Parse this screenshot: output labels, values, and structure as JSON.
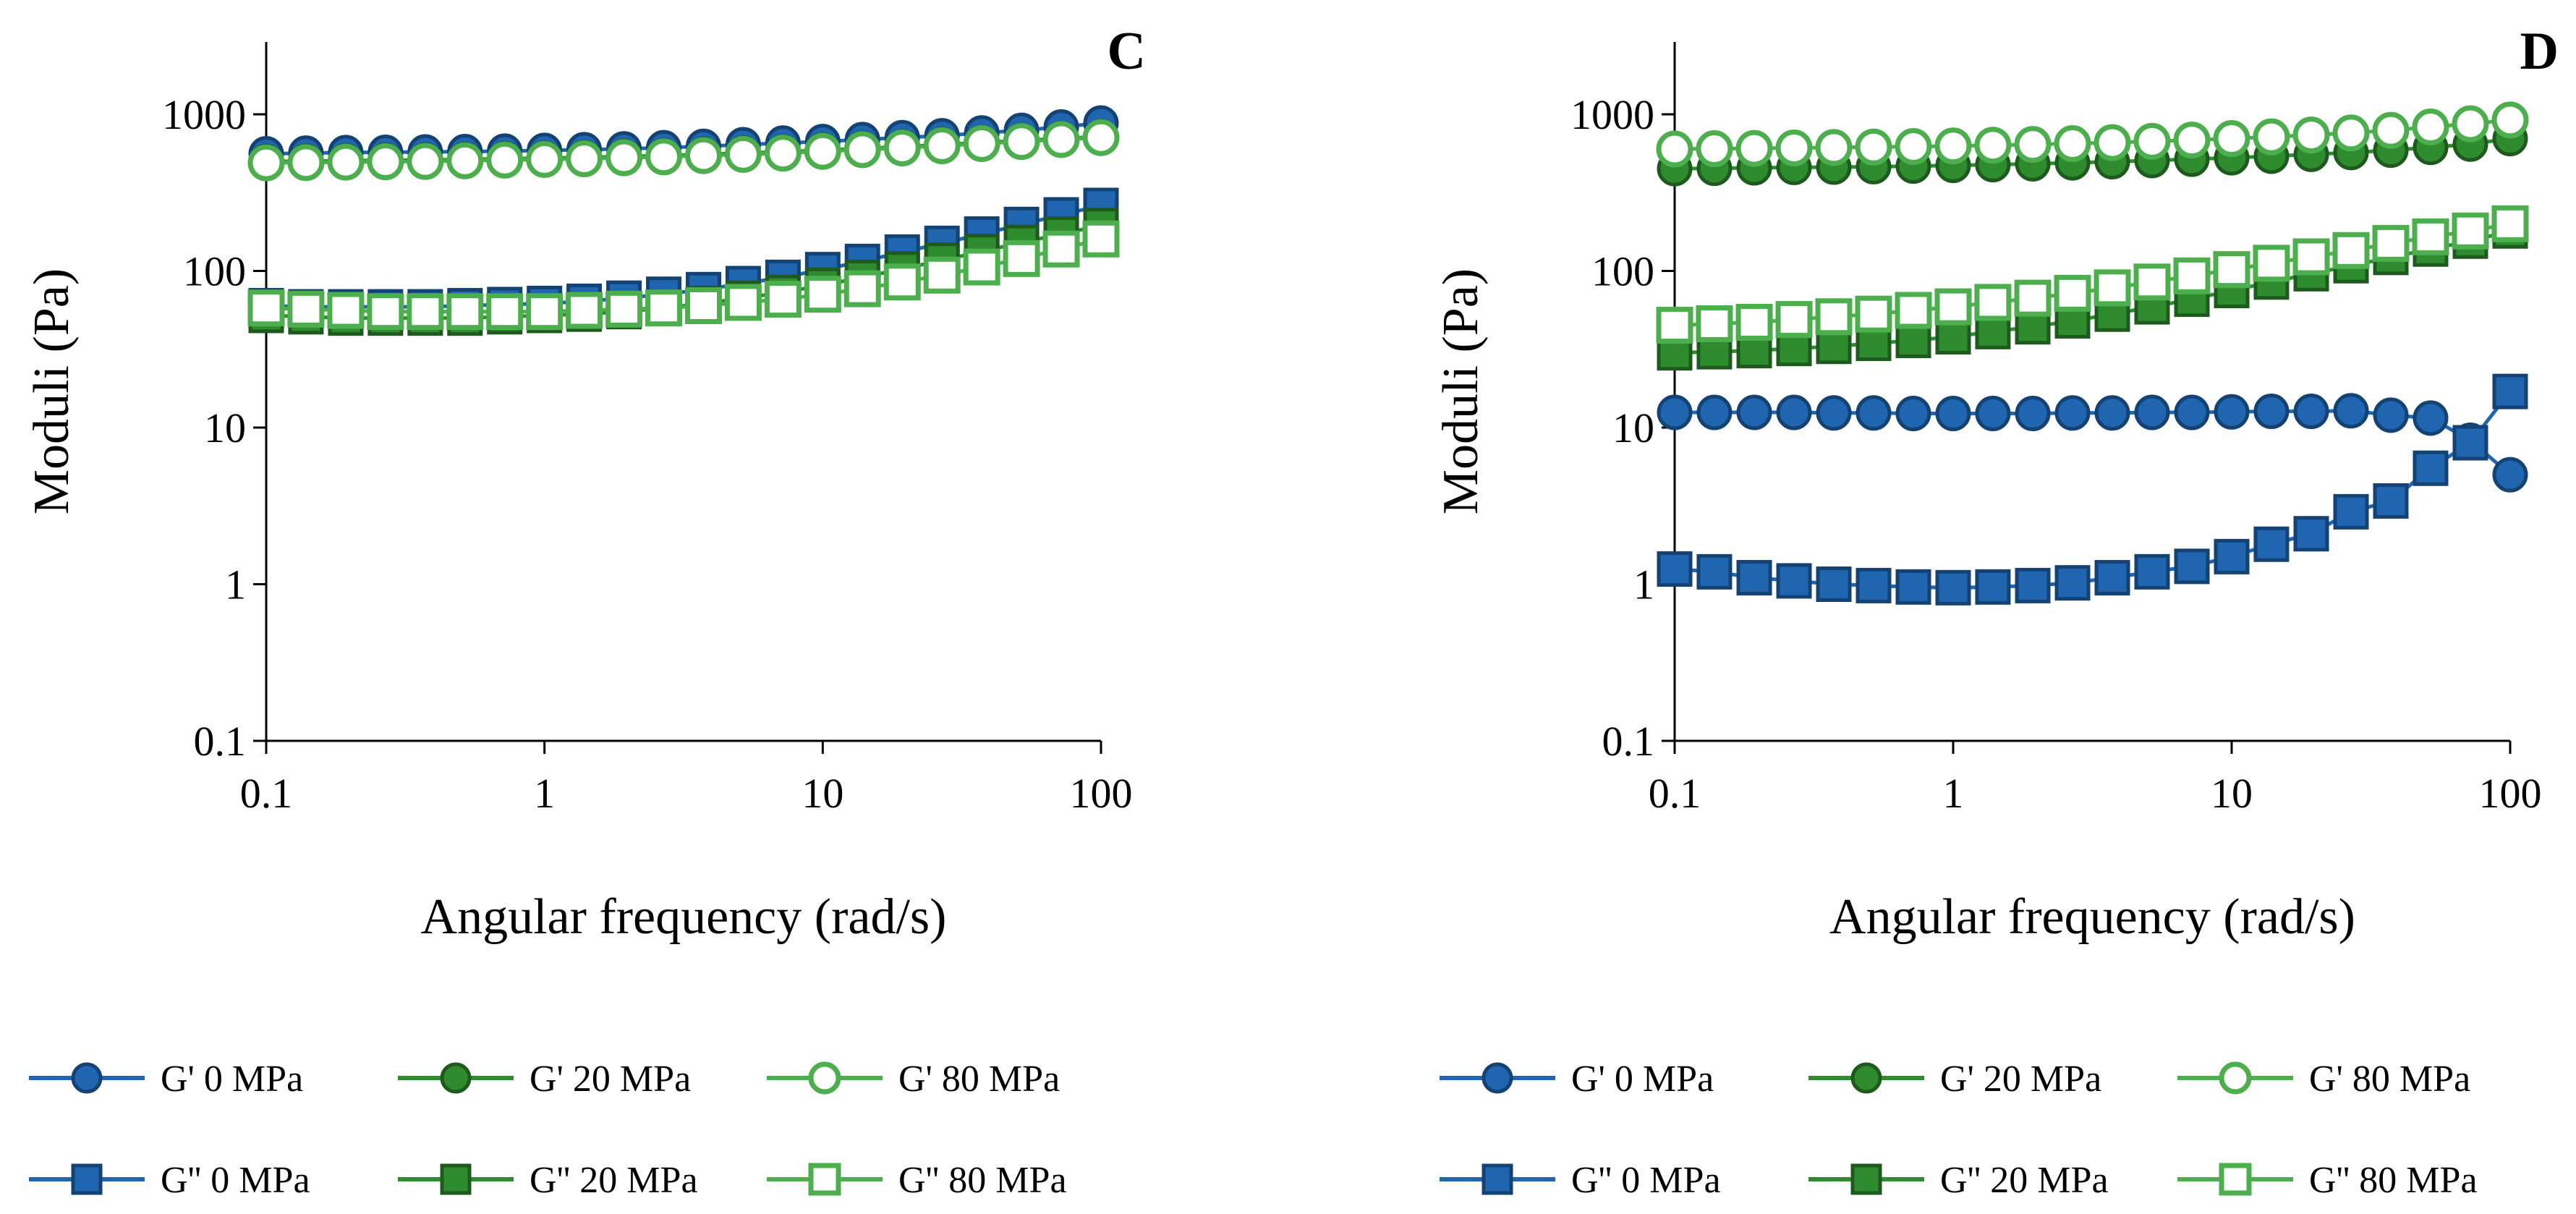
{
  "chart_data": [
    {
      "type": "line",
      "panel_label": "C",
      "xscale": "log",
      "yscale": "log",
      "xlim": [
        0.1,
        100
      ],
      "ylim": [
        0.1,
        3000
      ],
      "xlabel": "Angular frequency (rad/s)",
      "ylabel": "Moduli (Pa)",
      "xticks": [
        "0.1",
        "1",
        "10",
        "100"
      ],
      "yticks": [
        "0.1",
        "1",
        "10",
        "100",
        "1000"
      ],
      "x": [
        0.1,
        0.1389,
        0.1931,
        0.2683,
        0.3728,
        0.5179,
        0.7197,
        1.0,
        1.389,
        1.931,
        2.683,
        3.728,
        5.179,
        7.197,
        10.0,
        13.89,
        19.31,
        26.83,
        37.28,
        51.79,
        71.97,
        100
      ],
      "series": [
        {
          "name": "G' 0 MPa",
          "color": "#1f65b0",
          "marker": "circle",
          "filled": true,
          "values": [
            560,
            565,
            570,
            572,
            575,
            578,
            582,
            588,
            595,
            602,
            612,
            625,
            640,
            655,
            670,
            690,
            710,
            730,
            760,
            790,
            830,
            880
          ]
        },
        {
          "name": "G' 20 MPa",
          "color": "#2e8b2e",
          "marker": "circle",
          "filled": true,
          "values": [
            500,
            502,
            505,
            508,
            510,
            515,
            520,
            525,
            530,
            538,
            545,
            555,
            565,
            575,
            590,
            605,
            620,
            640,
            660,
            680,
            700,
            720
          ]
        },
        {
          "name": "G' 80 MPa",
          "color": "#4cae4c",
          "marker": "circle",
          "filled": false,
          "values": [
            490,
            492,
            495,
            498,
            500,
            505,
            510,
            515,
            520,
            528,
            535,
            545,
            555,
            565,
            580,
            595,
            610,
            630,
            650,
            670,
            690,
            710
          ]
        },
        {
          "name": "G'' 0 MPa",
          "color": "#1f65b0",
          "marker": "square",
          "filled": true,
          "values": [
            60,
            59,
            59,
            59,
            59,
            60,
            61,
            62,
            64,
            67,
            71,
            76,
            83,
            91,
            102,
            115,
            132,
            150,
            172,
            198,
            228,
            262
          ]
        },
        {
          "name": "G'' 20 MPa",
          "color": "#2e8b2e",
          "marker": "square",
          "filled": true,
          "values": [
            52,
            51,
            50,
            50,
            50,
            50,
            51,
            52,
            53,
            55,
            58,
            62,
            67,
            73,
            81,
            91,
            103,
            117,
            133,
            152,
            172,
            195
          ]
        },
        {
          "name": "G'' 80 MPa",
          "color": "#4cae4c",
          "marker": "square",
          "filled": false,
          "values": [
            58,
            57,
            56,
            55,
            55,
            55,
            55,
            55,
            56,
            57,
            58,
            60,
            63,
            66,
            71,
            77,
            85,
            94,
            106,
            120,
            138,
            160
          ]
        }
      ]
    },
    {
      "type": "line",
      "panel_label": "D",
      "xscale": "log",
      "yscale": "log",
      "xlim": [
        0.1,
        100
      ],
      "ylim": [
        0.1,
        3000
      ],
      "xlabel": "Angular frequency (rad/s)",
      "ylabel": "Moduli (Pa)",
      "xticks": [
        "0.1",
        "1",
        "10",
        "100"
      ],
      "yticks": [
        "0.1",
        "1",
        "10",
        "100",
        "1000"
      ],
      "x": [
        0.1,
        0.1389,
        0.1931,
        0.2683,
        0.3728,
        0.5179,
        0.7197,
        1.0,
        1.389,
        1.931,
        2.683,
        3.728,
        5.179,
        7.197,
        10.0,
        13.89,
        19.31,
        26.83,
        37.28,
        51.79,
        71.97,
        100
      ],
      "series": [
        {
          "name": "G' 0 MPa",
          "color": "#1f65b0",
          "marker": "circle",
          "filled": true,
          "values": [
            12.5,
            12.5,
            12.5,
            12.5,
            12.4,
            12.4,
            12.3,
            12.3,
            12.3,
            12.3,
            12.4,
            12.4,
            12.5,
            12.5,
            12.6,
            12.7,
            12.7,
            12.8,
            12.0,
            11.5,
            8.3,
            5.0
          ]
        },
        {
          "name": "G' 20 MPa",
          "color": "#2e8b2e",
          "marker": "circle",
          "filled": true,
          "values": [
            450,
            452,
            455,
            458,
            460,
            463,
            467,
            472,
            477,
            483,
            490,
            498,
            507,
            517,
            528,
            540,
            555,
            570,
            590,
            615,
            645,
            700
          ]
        },
        {
          "name": "G' 80 MPa",
          "color": "#4cae4c",
          "marker": "circle",
          "filled": false,
          "values": [
            600,
            603,
            606,
            610,
            614,
            618,
            623,
            628,
            635,
            642,
            650,
            660,
            672,
            685,
            700,
            718,
            738,
            760,
            790,
            830,
            870,
            920
          ]
        },
        {
          "name": "G'' 0 MPa",
          "color": "#1f65b0",
          "marker": "square",
          "filled": true,
          "values": [
            1.25,
            1.2,
            1.1,
            1.05,
            1.0,
            0.98,
            0.96,
            0.95,
            0.96,
            0.98,
            1.02,
            1.1,
            1.2,
            1.3,
            1.5,
            1.8,
            2.1,
            2.9,
            3.4,
            5.5,
            8.0,
            17.0
          ]
        },
        {
          "name": "G'' 20 MPa",
          "color": "#2e8b2e",
          "marker": "square",
          "filled": true,
          "values": [
            30,
            30.5,
            31,
            32,
            33,
            34.5,
            36,
            38,
            41,
            44,
            48,
            53,
            59,
            66,
            75,
            85,
            96,
            108,
            122,
            138,
            155,
            180
          ]
        },
        {
          "name": "G'' 80 MPa",
          "color": "#4cae4c",
          "marker": "square",
          "filled": false,
          "values": [
            45,
            46,
            47,
            49,
            51,
            53,
            56,
            59,
            63,
            67,
            72,
            78,
            85,
            93,
            102,
            112,
            123,
            135,
            150,
            165,
            180,
            200
          ]
        }
      ]
    }
  ]
}
